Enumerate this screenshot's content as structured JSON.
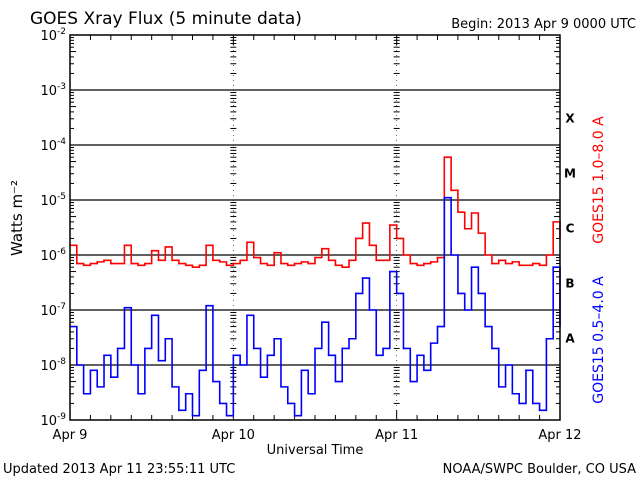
{
  "header": {
    "title": "GOES Xray Flux (5 minute data)",
    "begin": "Begin:  2013 Apr 9 0000 UTC"
  },
  "footer": {
    "updated": "Updated 2013 Apr 11 23:55:11 UTC",
    "source": "NOAA/SWPC Boulder, CO USA"
  },
  "chart_data": {
    "type": "line",
    "title": "GOES Xray Flux (5 minute data)",
    "xlabel": "Universal Time",
    "ylabel": "Watts m⁻²",
    "y_scale": "log",
    "ylim": [
      1e-09,
      0.01
    ],
    "y_ticks": [
      {
        "base": "10",
        "exp": "-2"
      },
      {
        "base": "10",
        "exp": "-3"
      },
      {
        "base": "10",
        "exp": "-4"
      },
      {
        "base": "10",
        "exp": "-5"
      },
      {
        "base": "10",
        "exp": "-6"
      },
      {
        "base": "10",
        "exp": "-7"
      },
      {
        "base": "10",
        "exp": "-8"
      },
      {
        "base": "10",
        "exp": "-9"
      }
    ],
    "x_ticks": [
      "Apr 9",
      "Apr 10",
      "Apr 11",
      "Apr 12"
    ],
    "x_unit": "hours since 2013 Apr 9 0000 UTC",
    "xlim": [
      0,
      72
    ],
    "flare_classes": [
      "X",
      "M",
      "C",
      "B",
      "A"
    ],
    "grid": "horizontal at decades",
    "series": [
      {
        "name": "GOES15 1.0–8.0 A",
        "color": "#ff0000",
        "x": [
          0,
          1,
          2,
          3,
          4,
          5,
          6,
          7,
          8,
          9,
          10,
          11,
          12,
          13,
          14,
          15,
          16,
          17,
          18,
          19,
          20,
          21,
          22,
          23,
          24,
          25,
          26,
          27,
          28,
          29,
          30,
          31,
          32,
          33,
          34,
          35,
          36,
          37,
          38,
          39,
          40,
          41,
          42,
          43,
          44,
          45,
          46,
          47,
          48,
          49,
          50,
          51,
          52,
          53,
          54,
          55,
          56,
          57,
          58,
          59,
          60,
          61,
          62,
          63,
          64,
          65,
          66,
          67,
          68,
          69,
          70,
          71,
          72
        ],
        "values": [
          1.5e-06,
          7e-07,
          6.5e-07,
          7e-07,
          7.5e-07,
          8e-07,
          7e-07,
          7e-07,
          1.5e-06,
          7e-07,
          6.5e-07,
          7e-07,
          1.2e-06,
          8e-07,
          1.4e-06,
          8e-07,
          7e-07,
          6.5e-07,
          6e-07,
          6.5e-07,
          1.5e-06,
          8e-07,
          7.5e-07,
          6.5e-07,
          7e-07,
          8e-07,
          1.7e-06,
          9e-07,
          7e-07,
          6.5e-07,
          1.1e-06,
          7e-07,
          6.5e-07,
          7e-07,
          7.5e-07,
          7e-07,
          9e-07,
          1.3e-06,
          8e-07,
          6.5e-07,
          6e-07,
          8e-07,
          2e-06,
          3.8e-06,
          1.5e-06,
          8e-07,
          8e-07,
          3.5e-06,
          2e-06,
          1e-06,
          7e-07,
          6.5e-07,
          7e-07,
          7.5e-07,
          9e-07,
          6e-05,
          1.5e-05,
          6e-06,
          3e-06,
          5.8e-06,
          2.5e-06,
          1e-06,
          7e-07,
          8e-07,
          7e-07,
          7.5e-07,
          6.5e-07,
          6.5e-07,
          7e-07,
          6.5e-07,
          1e-06,
          4e-06,
          2e-06
        ]
      },
      {
        "name": "GOES15 0.5–4.0 A",
        "color": "#0000ff",
        "x": [
          0,
          1,
          2,
          3,
          4,
          5,
          6,
          7,
          8,
          9,
          10,
          11,
          12,
          13,
          14,
          15,
          16,
          17,
          18,
          19,
          20,
          21,
          22,
          23,
          24,
          25,
          26,
          27,
          28,
          29,
          30,
          31,
          32,
          33,
          34,
          35,
          36,
          37,
          38,
          39,
          40,
          41,
          42,
          43,
          44,
          45,
          46,
          47,
          48,
          49,
          50,
          51,
          52,
          53,
          54,
          55,
          56,
          57,
          58,
          59,
          60,
          61,
          62,
          63,
          64,
          65,
          66,
          67,
          68,
          69,
          70,
          71,
          72
        ],
        "values": [
          5e-08,
          1e-08,
          3e-09,
          8e-09,
          4e-09,
          1.5e-08,
          6e-09,
          2e-08,
          1.1e-07,
          1e-08,
          3e-09,
          2e-08,
          8e-08,
          1.2e-08,
          3e-08,
          4e-09,
          1.5e-09,
          3e-09,
          1.2e-09,
          8e-09,
          1.2e-07,
          5e-09,
          2e-09,
          1.2e-09,
          1.5e-08,
          1e-08,
          8e-08,
          2e-08,
          6e-09,
          1.5e-08,
          3e-08,
          4e-09,
          2e-09,
          1.2e-09,
          8e-09,
          3e-09,
          2e-08,
          6e-08,
          1.5e-08,
          5e-09,
          2e-08,
          3e-08,
          2e-07,
          3.8e-07,
          1e-07,
          1.5e-08,
          2e-08,
          5e-07,
          2e-07,
          2e-08,
          5e-09,
          1.5e-08,
          8e-09,
          2.5e-08,
          5e-08,
          1.1e-05,
          1e-06,
          2e-07,
          1e-07,
          6e-07,
          2e-07,
          5e-08,
          2e-08,
          4e-09,
          1e-08,
          3e-09,
          2e-09,
          8e-09,
          2e-09,
          1.5e-09,
          3e-08,
          6e-07,
          5e-08
        ]
      }
    ]
  }
}
